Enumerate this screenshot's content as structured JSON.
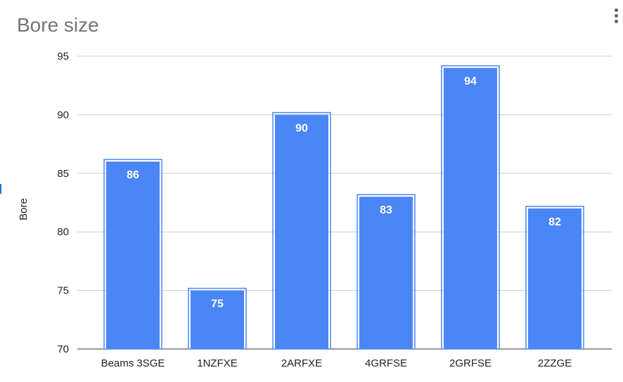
{
  "chart_data": {
    "type": "bar",
    "title": "Bore size",
    "ylabel": "Bore",
    "xlabel": "",
    "categories": [
      "Beams 3SGE",
      "1NZFXE",
      "2ARFXE",
      "4GRFSE",
      "2GRFSE",
      "2ZZGE"
    ],
    "values": [
      86,
      75,
      90,
      83,
      94,
      82
    ],
    "ylim": [
      70,
      95
    ],
    "yticks": [
      70,
      75,
      80,
      85,
      90,
      95
    ],
    "grid": true,
    "legend": "none",
    "bar_color": "#4a86f5",
    "data_labels": true
  },
  "ui": {
    "menu_icon": "more-vert-icon"
  }
}
